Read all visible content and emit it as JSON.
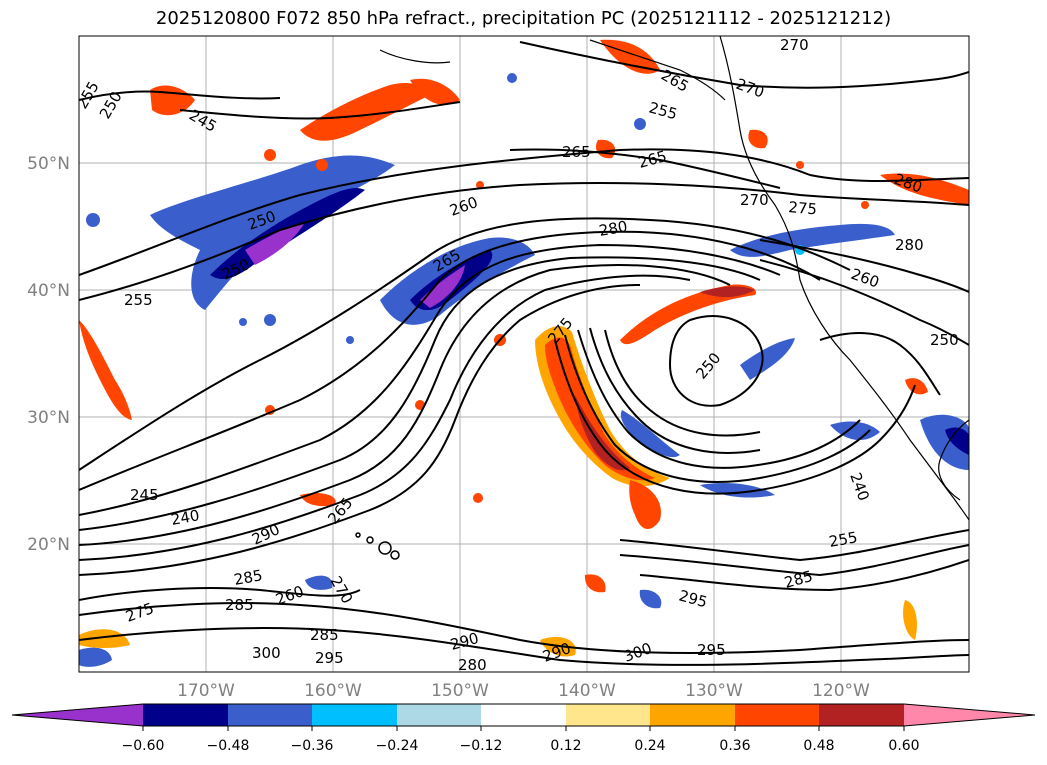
{
  "title": "2025120800 F072 850 hPa refract., precipitation PC (2025121112 - 2025121212)",
  "lat_labels": [
    "50°N",
    "40°N",
    "30°N",
    "20°N"
  ],
  "lon_labels": [
    "170°W",
    "160°W",
    "150°W",
    "140°W",
    "130°W",
    "120°W"
  ],
  "contour_labels": [
    "255",
    "250",
    "245",
    "265",
    "255",
    "270",
    "270",
    "265",
    "265",
    "250",
    "250",
    "260",
    "280",
    "270",
    "275",
    "280",
    "260",
    "255",
    "265",
    "250",
    "250",
    "275",
    "240",
    "245",
    "240",
    "290",
    "265",
    "285",
    "270",
    "285",
    "260",
    "275",
    "285",
    "290",
    "295",
    "300",
    "280",
    "290",
    "295",
    "300",
    "295",
    "285",
    "280",
    "255"
  ],
  "colorbar": {
    "colors": [
      "#9932cc",
      "#00008b",
      "#3a5fcd",
      "#00bfff",
      "#add8e6",
      "#ffffff",
      "#ffe68c",
      "#ffa500",
      "#ff4500",
      "#b22222",
      "#ff88aa"
    ],
    "ticks": [
      "−0.60",
      "−0.48",
      "−0.36",
      "−0.24",
      "−0.12",
      "0.12",
      "0.24",
      "0.36",
      "0.48",
      "0.60"
    ]
  }
}
